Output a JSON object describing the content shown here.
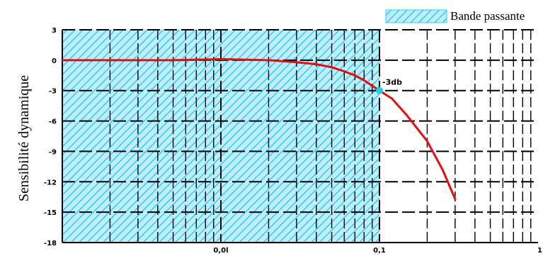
{
  "chart_data": {
    "type": "line",
    "ylabel": "Sensibilité dynamique",
    "xscale": "log",
    "xlim": [
      0.001,
      1
    ],
    "ylim": [
      -18,
      3
    ],
    "yticks": [
      "3",
      "0",
      "-3",
      "-6",
      "-9",
      "-12",
      "-15",
      "-18"
    ],
    "ytick_values": [
      3,
      0,
      -3,
      -6,
      -9,
      -12,
      -15,
      -18
    ],
    "xticks": [
      "0,0l",
      "0,1",
      "1"
    ],
    "xtick_values": [
      0.01,
      0.1,
      1
    ],
    "grid": true,
    "legend": {
      "label": "Bande passante",
      "position": "top-right"
    },
    "band": {
      "from": 0.001,
      "to": 0.1,
      "label": "Bande passante"
    },
    "series": [
      {
        "color": "#e01010",
        "x": [
          0.001,
          0.002,
          0.005,
          0.01,
          0.02,
          0.03,
          0.04,
          0.05,
          0.06,
          0.07,
          0.08,
          0.1,
          0.12,
          0.15,
          0.2,
          0.25,
          0.3
        ],
        "y": [
          0,
          0,
          0,
          0.1,
          0,
          -0.2,
          -0.4,
          -0.7,
          -1.1,
          -1.5,
          -2.0,
          -3.0,
          -3.8,
          -5.5,
          -8.0,
          -10.8,
          -13.7
        ]
      }
    ],
    "annotation": {
      "text": "-3db",
      "x": 0.1,
      "y": -3,
      "color": "#22ccdd"
    },
    "colors": {
      "band_fill": "#bfefff",
      "band_hatch": "#33ccee",
      "grid": "#000000",
      "curve": "#e01010"
    }
  }
}
